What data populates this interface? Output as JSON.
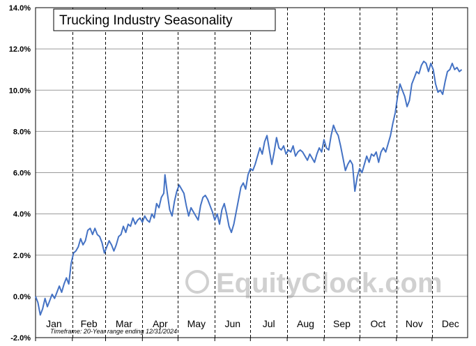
{
  "chart_data": {
    "type": "line",
    "title": "Trucking Industry Seasonality",
    "footnote": "Timeframe: 20-Year range ending 12/31/2024",
    "watermark": "EquityClock.com",
    "x_axis": {
      "categories": [
        "Jan",
        "Feb",
        "Mar",
        "Apr",
        "May",
        "Jun",
        "Jul",
        "Aug",
        "Sep",
        "Oct",
        "Nov",
        "Dec"
      ]
    },
    "y_axis": {
      "ylim": [
        -2,
        14
      ],
      "ticks": [
        -2,
        0,
        2,
        4,
        6,
        8,
        10,
        12,
        14
      ],
      "tick_labels": [
        "-2.0%",
        "0.0%",
        "2.0%",
        "4.0%",
        "6.0%",
        "8.0%",
        "10.0%",
        "12.0%",
        "14.0%"
      ]
    },
    "grid": {
      "horizontal": true,
      "vertical_month_dividers": "dashed"
    },
    "series": [
      {
        "color": "#4472c4",
        "x_unit": "day of year",
        "points": [
          [
            1,
            0.0
          ],
          [
            3,
            -0.3
          ],
          [
            5,
            -0.9
          ],
          [
            7,
            -0.6
          ],
          [
            9,
            -0.1
          ],
          [
            11,
            -0.5
          ],
          [
            13,
            -0.2
          ],
          [
            15,
            0.1
          ],
          [
            17,
            -0.1
          ],
          [
            19,
            0.2
          ],
          [
            21,
            0.5
          ],
          [
            23,
            0.2
          ],
          [
            25,
            0.6
          ],
          [
            27,
            0.9
          ],
          [
            29,
            0.6
          ],
          [
            31,
            1.6
          ],
          [
            33,
            2.1
          ],
          [
            35,
            2.2
          ],
          [
            37,
            2.4
          ],
          [
            39,
            2.8
          ],
          [
            41,
            2.5
          ],
          [
            43,
            2.7
          ],
          [
            45,
            3.2
          ],
          [
            47,
            3.3
          ],
          [
            49,
            3.0
          ],
          [
            51,
            3.3
          ],
          [
            53,
            3.0
          ],
          [
            55,
            2.9
          ],
          [
            57,
            2.6
          ],
          [
            59,
            2.1
          ],
          [
            61,
            2.4
          ],
          [
            63,
            2.7
          ],
          [
            65,
            2.5
          ],
          [
            67,
            2.2
          ],
          [
            69,
            2.5
          ],
          [
            71,
            2.9
          ],
          [
            73,
            3.0
          ],
          [
            75,
            3.4
          ],
          [
            77,
            3.1
          ],
          [
            79,
            3.5
          ],
          [
            81,
            3.4
          ],
          [
            83,
            3.8
          ],
          [
            85,
            3.5
          ],
          [
            87,
            3.7
          ],
          [
            89,
            3.8
          ],
          [
            91,
            3.6
          ],
          [
            93,
            3.9
          ],
          [
            95,
            3.7
          ],
          [
            97,
            3.6
          ],
          [
            99,
            4.0
          ],
          [
            101,
            3.8
          ],
          [
            103,
            4.5
          ],
          [
            105,
            4.3
          ],
          [
            107,
            4.8
          ],
          [
            109,
            5.0
          ],
          [
            110,
            5.9
          ],
          [
            112,
            5.0
          ],
          [
            114,
            4.2
          ],
          [
            116,
            3.9
          ],
          [
            118,
            4.6
          ],
          [
            120,
            5.1
          ],
          [
            122,
            5.4
          ],
          [
            124,
            5.2
          ],
          [
            126,
            5.0
          ],
          [
            128,
            4.4
          ],
          [
            130,
            3.9
          ],
          [
            132,
            4.3
          ],
          [
            134,
            4.1
          ],
          [
            136,
            3.9
          ],
          [
            138,
            3.7
          ],
          [
            140,
            4.4
          ],
          [
            142,
            4.8
          ],
          [
            144,
            4.9
          ],
          [
            146,
            4.7
          ],
          [
            148,
            4.4
          ],
          [
            150,
            4.1
          ],
          [
            152,
            3.7
          ],
          [
            154,
            4.0
          ],
          [
            156,
            3.5
          ],
          [
            158,
            4.2
          ],
          [
            160,
            4.5
          ],
          [
            162,
            4.0
          ],
          [
            164,
            3.4
          ],
          [
            166,
            3.1
          ],
          [
            168,
            3.5
          ],
          [
            170,
            4.1
          ],
          [
            172,
            4.7
          ],
          [
            174,
            5.3
          ],
          [
            176,
            5.5
          ],
          [
            178,
            5.2
          ],
          [
            180,
            5.9
          ],
          [
            182,
            6.2
          ],
          [
            184,
            6.1
          ],
          [
            186,
            6.4
          ],
          [
            188,
            6.8
          ],
          [
            190,
            7.2
          ],
          [
            192,
            6.9
          ],
          [
            194,
            7.5
          ],
          [
            196,
            7.8
          ],
          [
            198,
            7.1
          ],
          [
            200,
            6.4
          ],
          [
            202,
            7.0
          ],
          [
            204,
            7.7
          ],
          [
            206,
            7.2
          ],
          [
            208,
            7.1
          ],
          [
            210,
            7.3
          ],
          [
            212,
            6.9
          ],
          [
            214,
            7.1
          ],
          [
            216,
            7.0
          ],
          [
            218,
            7.3
          ],
          [
            220,
            6.8
          ],
          [
            222,
            7.0
          ],
          [
            224,
            7.1
          ],
          [
            226,
            7.0
          ],
          [
            228,
            6.8
          ],
          [
            230,
            6.6
          ],
          [
            232,
            6.9
          ],
          [
            234,
            6.7
          ],
          [
            236,
            6.5
          ],
          [
            238,
            6.9
          ],
          [
            240,
            7.2
          ],
          [
            242,
            7.0
          ],
          [
            244,
            7.6
          ],
          [
            246,
            7.2
          ],
          [
            248,
            7.1
          ],
          [
            250,
            7.8
          ],
          [
            252,
            8.3
          ],
          [
            254,
            8.0
          ],
          [
            256,
            7.8
          ],
          [
            258,
            7.3
          ],
          [
            260,
            6.7
          ],
          [
            262,
            6.1
          ],
          [
            264,
            6.4
          ],
          [
            266,
            6.6
          ],
          [
            268,
            6.4
          ],
          [
            270,
            5.1
          ],
          [
            272,
            5.8
          ],
          [
            274,
            6.2
          ],
          [
            276,
            6.0
          ],
          [
            278,
            6.4
          ],
          [
            280,
            6.8
          ],
          [
            282,
            6.5
          ],
          [
            284,
            6.9
          ],
          [
            286,
            6.8
          ],
          [
            288,
            7.0
          ],
          [
            290,
            6.5
          ],
          [
            292,
            7.0
          ],
          [
            294,
            7.2
          ],
          [
            296,
            7.0
          ],
          [
            298,
            7.4
          ],
          [
            300,
            7.8
          ],
          [
            302,
            8.4
          ],
          [
            304,
            8.9
          ],
          [
            306,
            9.7
          ],
          [
            308,
            10.3
          ],
          [
            310,
            10.0
          ],
          [
            312,
            9.7
          ],
          [
            314,
            9.2
          ],
          [
            316,
            9.5
          ],
          [
            318,
            10.3
          ],
          [
            320,
            10.6
          ],
          [
            322,
            10.9
          ],
          [
            324,
            10.8
          ],
          [
            326,
            11.2
          ],
          [
            328,
            11.4
          ],
          [
            330,
            11.3
          ],
          [
            332,
            10.9
          ],
          [
            334,
            11.3
          ],
          [
            336,
            11.0
          ],
          [
            338,
            10.3
          ],
          [
            340,
            9.9
          ],
          [
            342,
            10.0
          ],
          [
            344,
            9.8
          ],
          [
            346,
            10.4
          ],
          [
            348,
            10.9
          ],
          [
            350,
            11.0
          ],
          [
            352,
            11.3
          ],
          [
            354,
            11.0
          ],
          [
            356,
            11.1
          ],
          [
            358,
            10.9
          ],
          [
            360,
            11.0
          ]
        ]
      }
    ]
  }
}
